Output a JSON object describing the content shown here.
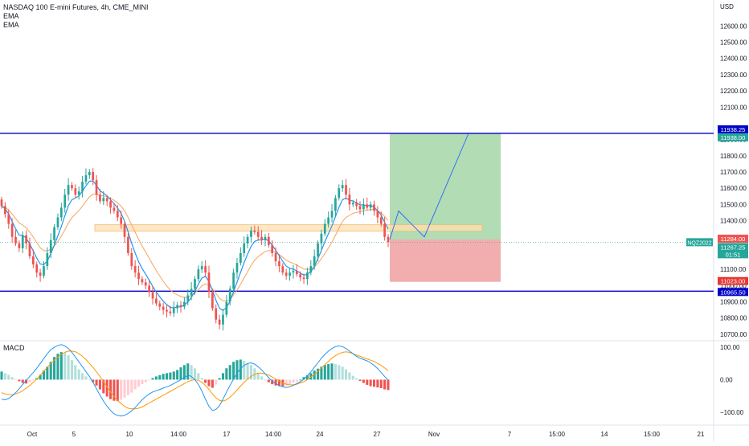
{
  "header": {
    "symbol_title": "NASDAQ 100 E-mini Futures, 4h, CME_MINI",
    "ema1_label": "EMA",
    "ema2_label": "EMA",
    "currency": "USD"
  },
  "macd": {
    "label": "MACD"
  },
  "colors": {
    "up": "#26a69a",
    "down": "#ef5350",
    "line_blue": "#2962ff",
    "ema_fast": "#2196f3",
    "ema_slow": "#f7a35c",
    "macd_line": "#2196f3",
    "signal_line": "#ff9800",
    "profit_zone": "#a5d6a7",
    "loss_zone": "#ef9a9a",
    "level_line": "#0000c8",
    "zone_fill": "#ffe0b2"
  },
  "chart_data": [
    {
      "type": "candlestick",
      "title": "NASDAQ 100 E-mini Futures, 4h, CME_MINI",
      "y_axis": {
        "unit": "USD",
        "ylim": [
          10660,
          12760
        ],
        "ticks": [
          12600,
          12500,
          12400,
          12300,
          12200,
          12100,
          11900,
          11800,
          11700,
          11600,
          11500,
          11400,
          11100,
          11000,
          10900,
          10800,
          10700
        ]
      },
      "x_axis": {
        "ticks": [
          "Oct",
          "5",
          "10",
          "14:00",
          "17",
          "14:00",
          "24",
          "27",
          "Nov",
          "7",
          "15:00",
          "14",
          "15:00",
          "21"
        ]
      },
      "close_series": [
        11490,
        11440,
        11380,
        11300,
        11260,
        11230,
        11310,
        11260,
        11180,
        11130,
        11080,
        11060,
        11120,
        11200,
        11280,
        11360,
        11420,
        11480,
        11560,
        11620,
        11600,
        11560,
        11580,
        11640,
        11680,
        11700,
        11650,
        11560,
        11520,
        11540,
        11520,
        11480,
        11460,
        11420,
        11380,
        11300,
        11200,
        11120,
        11080,
        11040,
        11020,
        11000,
        10960,
        10920,
        10890,
        10870,
        10850,
        10840,
        10830,
        10860,
        10880,
        10870,
        10900,
        10940,
        10980,
        11040,
        11100,
        11120,
        11080,
        10960,
        10860,
        10790,
        10760,
        10820,
        10900,
        10980,
        11080,
        11140,
        11200,
        11260,
        11300,
        11340,
        11330,
        11300,
        11280,
        11300,
        11250,
        11200,
        11150,
        11120,
        11080,
        11060,
        11080,
        11090,
        11070,
        11050,
        11040,
        11080,
        11120,
        11180,
        11260,
        11320,
        11380,
        11420,
        11460,
        11540,
        11600,
        11620,
        11560,
        11500,
        11510,
        11490,
        11470,
        11500,
        11480,
        11500,
        11460,
        11420,
        11380,
        11300,
        11267.25
      ],
      "open_series_note": "",
      "horizontal_levels": [
        11938.25,
        11938.0,
        10965.5
      ],
      "price_labels": [
        {
          "value": "11938.25",
          "color": "#0000c8"
        },
        {
          "value": "11938.00",
          "color": "#26a69a"
        },
        {
          "value": "11284.00",
          "color": "#ef5350"
        },
        {
          "value": "11267.25",
          "color": "#26a69a"
        },
        {
          "value": "01:51",
          "color": "#26a69a"
        },
        {
          "value": "11023.00",
          "color": "#e53935"
        },
        {
          "value": "10965.50",
          "color": "#0000c8"
        }
      ],
      "position": {
        "entry": 11284.0,
        "target": 11938.0,
        "stop": 11023.0,
        "current": 11267.25,
        "symbol_badge": "NQZ2022"
      },
      "support_zone": [
        11335,
        11375
      ],
      "projection_path": [
        11284,
        11460,
        11300,
        11938
      ]
    },
    {
      "type": "histogram+line",
      "title": "MACD",
      "ylim": [
        -140,
        120
      ],
      "ticks": [
        100.0,
        0.0,
        -100.0
      ],
      "tick_labels": [
        "100.00",
        "0.00",
        "−100.00"
      ],
      "histogram": [
        25,
        20,
        15,
        8,
        2,
        -5,
        -10,
        -12,
        -8,
        -2,
        5,
        15,
        28,
        40,
        55,
        70,
        80,
        85,
        82,
        75,
        60,
        45,
        32,
        20,
        10,
        2,
        -8,
        -18,
        -30,
        -42,
        -52,
        -60,
        -65,
        -66,
        -62,
        -55,
        -48,
        -40,
        -30,
        -22,
        -14,
        -8,
        -2,
        5,
        10,
        14,
        18,
        20,
        22,
        25,
        30,
        38,
        45,
        50,
        45,
        35,
        20,
        5,
        -10,
        -20,
        -25,
        -15,
        5,
        20,
        35,
        45,
        55,
        60,
        62,
        58,
        52,
        45,
        35,
        22,
        10,
        0,
        -8,
        -14,
        -18,
        -20,
        -20,
        -18,
        -14,
        -10,
        -6,
        0,
        8,
        14,
        20,
        28,
        34,
        40,
        45,
        48,
        50,
        48,
        45,
        40,
        32,
        22,
        12,
        4,
        -4,
        -10,
        -16,
        -20,
        -22,
        -24,
        -26,
        -30,
        -32
      ],
      "macd_line": [
        -60,
        -62,
        -58,
        -50,
        -40,
        -28,
        -15,
        -2,
        10,
        22,
        35,
        50,
        65,
        80,
        92,
        100,
        105,
        108,
        104,
        96,
        84,
        70,
        55,
        40,
        25,
        10,
        -8,
        -28,
        -48,
        -66,
        -82,
        -95,
        -105,
        -110,
        -112,
        -110,
        -104,
        -96,
        -86,
        -74,
        -62,
        -52,
        -44,
        -38,
        -34,
        -30,
        -26,
        -22,
        -18,
        -12,
        -6,
        0,
        6,
        14,
        10,
        0,
        -15,
        -35,
        -60,
        -82,
        -95,
        -92,
        -80,
        -60,
        -38,
        -18,
        2,
        20,
        34,
        44,
        50,
        52,
        48,
        40,
        30,
        18,
        6,
        -4,
        -12,
        -18,
        -22,
        -24,
        -22,
        -18,
        -12,
        -6,
        2,
        12,
        24,
        38,
        52,
        66,
        78,
        88,
        96,
        102,
        104,
        102,
        96,
        88,
        80,
        72,
        66,
        62,
        58,
        52,
        44,
        34,
        22,
        10,
        -2
      ],
      "signal_line": [
        -40,
        -44,
        -46,
        -46,
        -44,
        -40,
        -34,
        -26,
        -18,
        -8,
        2,
        14,
        26,
        38,
        50,
        60,
        70,
        78,
        84,
        88,
        88,
        86,
        80,
        72,
        62,
        50,
        38,
        24,
        10,
        -6,
        -22,
        -38,
        -52,
        -64,
        -74,
        -82,
        -88,
        -90,
        -90,
        -88,
        -84,
        -78,
        -72,
        -66,
        -60,
        -54,
        -48,
        -42,
        -36,
        -30,
        -24,
        -18,
        -12,
        -6,
        -2,
        0,
        -2,
        -8,
        -18,
        -30,
        -44,
        -56,
        -64,
        -66,
        -62,
        -54,
        -44,
        -32,
        -20,
        -8,
        2,
        10,
        16,
        20,
        20,
        18,
        14,
        8,
        2,
        -4,
        -10,
        -14,
        -16,
        -16,
        -14,
        -10,
        -6,
        0,
        8,
        16,
        26,
        36,
        46,
        56,
        66,
        74,
        80,
        84,
        86,
        84,
        80,
        76,
        72,
        68,
        64,
        60,
        56,
        50,
        44,
        36,
        28
      ]
    }
  ]
}
